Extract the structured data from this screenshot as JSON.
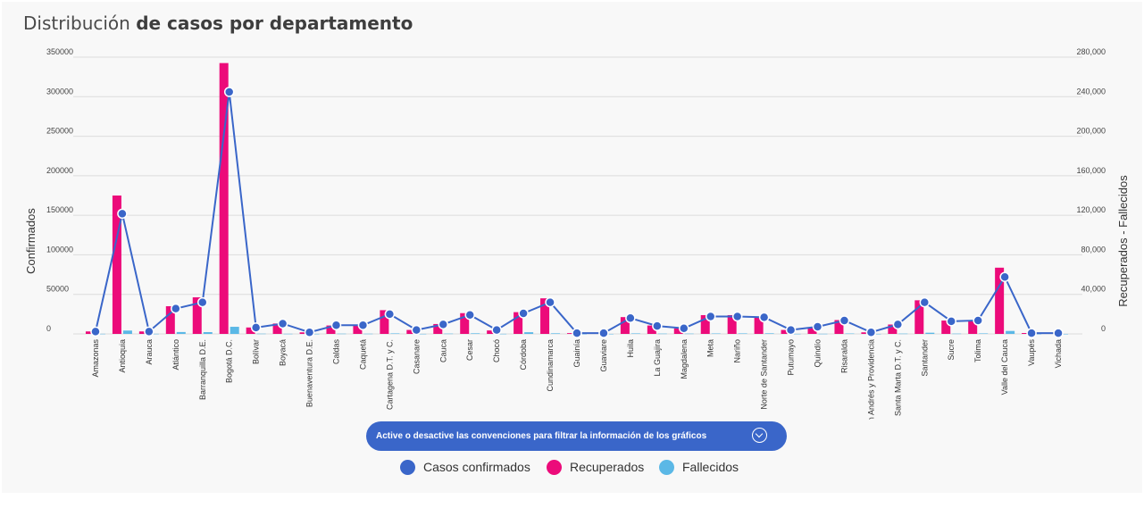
{
  "header": {
    "title_light": "Distribución",
    "title_bold": "de casos por departamento"
  },
  "banner": {
    "text": "Active o desactive las convenciones para filtrar la información de los gráficos",
    "icon": "chevron-down-icon"
  },
  "legend": [
    {
      "label": "Casos confirmados",
      "color": "#3a66c9"
    },
    {
      "label": "Recuperados",
      "color": "#ec0b7a"
    },
    {
      "label": "Fallecidos",
      "color": "#5bb8e6"
    }
  ],
  "chart_data": {
    "type": "bar",
    "title": "Distribución de casos por departamento",
    "ylabel": "Confirmados",
    "y2label": "Recuperados - Fallecidos",
    "ylim": [
      0,
      350000
    ],
    "y2lim": [
      0,
      280000
    ],
    "yticks": [
      "0",
      "50000",
      "100000",
      "150000",
      "200000",
      "250000",
      "300000",
      "350000"
    ],
    "y2ticks": [
      "0",
      "40,000",
      "80,000",
      "120,000",
      "160,000",
      "200,000",
      "240,000",
      "280,000"
    ],
    "grid": true,
    "legend_position": "bottom",
    "categories": [
      "Amazonas",
      "Antioquia",
      "Arauca",
      "Atlántico",
      "Barranquilla D.E.",
      "Bogotá D.C.",
      "Bolívar",
      "Boyacá",
      "Buenaventura D.E.",
      "Caldas",
      "Caquetá",
      "Cartagena D.T. y C.",
      "Casanare",
      "Cauca",
      "Cesar",
      "Chocó",
      "Córdoba",
      "Cundinamarca",
      "Guainía",
      "Guaviare",
      "Huila",
      "La Guajira",
      "Magdalena",
      "Meta",
      "Nariño",
      "Norte de Santander",
      "Putumayo",
      "Quindío",
      "Risaralda",
      "San Andrés y Providencia",
      "Santa Marta D.T. y C.",
      "Santander",
      "Sucre",
      "Tolima",
      "Valle del Cauca",
      "Vaupés",
      "Vichada"
    ],
    "series": [
      {
        "name": "Casos confirmados",
        "axis": "left",
        "kind": "line",
        "values": [
          3000,
          152000,
          3000,
          32000,
          40000,
          306000,
          8000,
          13000,
          2000,
          11000,
          11000,
          25000,
          5000,
          12000,
          24000,
          5000,
          26000,
          40000,
          1000,
          1000,
          20000,
          10000,
          7000,
          22000,
          22000,
          21000,
          5000,
          9000,
          17000,
          2000,
          12000,
          40000,
          16000,
          17000,
          72000,
          1000,
          1000
        ]
      },
      {
        "name": "Recuperados",
        "axis": "right",
        "kind": "bar",
        "values": [
          2500,
          140000,
          2500,
          28000,
          37000,
          274000,
          6500,
          10500,
          1600,
          8500,
          8500,
          24000,
          4000,
          10000,
          21000,
          3500,
          22000,
          36000,
          800,
          700,
          17000,
          8500,
          5500,
          19000,
          19000,
          17500,
          4000,
          6000,
          14000,
          1600,
          9500,
          34000,
          13500,
          13500,
          67000,
          900,
          700
        ]
      },
      {
        "name": "Fallecidos",
        "axis": "right",
        "kind": "bar",
        "values": [
          120,
          3400,
          120,
          1900,
          1800,
          7200,
          250,
          150,
          80,
          250,
          200,
          500,
          70,
          300,
          600,
          100,
          1700,
          600,
          20,
          20,
          500,
          300,
          300,
          450,
          500,
          600,
          80,
          150,
          400,
          30,
          300,
          1200,
          300,
          500,
          3000,
          20,
          20
        ]
      }
    ]
  }
}
